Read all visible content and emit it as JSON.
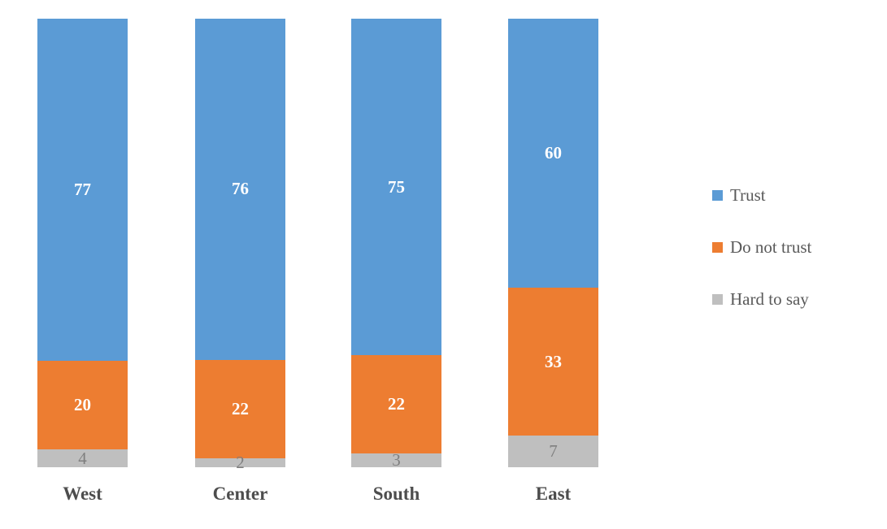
{
  "chart_data": {
    "type": "bar",
    "stacked": true,
    "title": "",
    "xlabel": "",
    "ylabel": "",
    "grid": false,
    "legend_position": "right",
    "data_labels": true,
    "categories": [
      "West",
      "Center",
      "South",
      "East"
    ],
    "series": [
      {
        "name": "Trust",
        "values": [
          77,
          76,
          75,
          60
        ],
        "color": "#5b9bd5",
        "label_color": "#ffffff",
        "label_weight": "bold"
      },
      {
        "name": "Do not trust",
        "values": [
          20,
          22,
          22,
          33
        ],
        "color": "#ed7d31",
        "label_color": "#ffffff",
        "label_weight": "bold"
      },
      {
        "name": "Hard to say",
        "values": [
          4,
          2,
          3,
          7
        ],
        "color": "#bfbfbf",
        "label_color": "#7f7f7f",
        "label_weight": "normal"
      }
    ]
  },
  "styles": {
    "category_label_color": "#4d4d4d",
    "legend_text_color": "#595959",
    "background": "#ffffff"
  }
}
